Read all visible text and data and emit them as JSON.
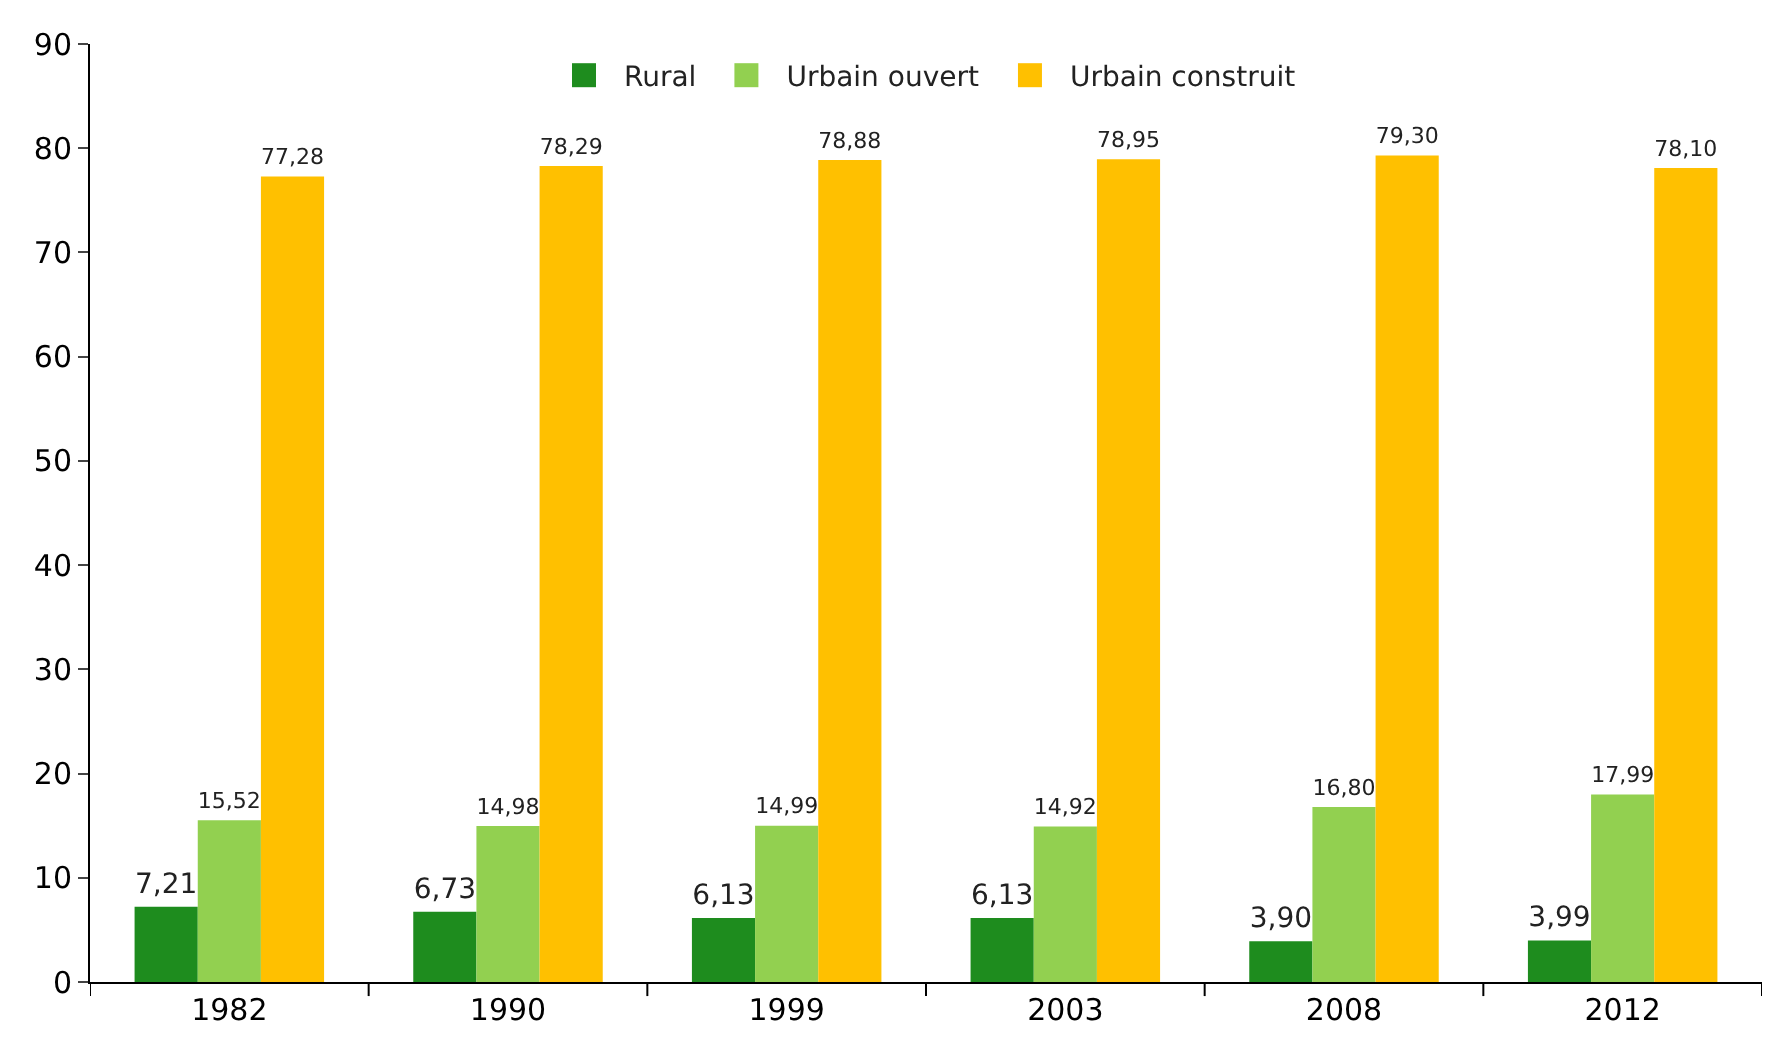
{
  "chart_data": {
    "type": "bar",
    "categories": [
      "1982",
      "1990",
      "1999",
      "2003",
      "2008",
      "2012"
    ],
    "series": [
      {
        "name": "Rural",
        "color": "#1e8c1e",
        "values": [
          7.21,
          6.73,
          6.13,
          6.13,
          3.9,
          3.99
        ],
        "value_labels": [
          "7,21",
          "6,73",
          "6,13",
          "6,13",
          "3,90",
          "3,99"
        ]
      },
      {
        "name": "Urbain ouvert",
        "color": "#92d050",
        "values": [
          15.52,
          14.98,
          14.99,
          14.92,
          16.8,
          17.99
        ],
        "value_labels": [
          "15,52",
          "14,98",
          "14,99",
          "14,92",
          "16,80",
          "17,99"
        ]
      },
      {
        "name": "Urbain construit",
        "color": "#ffc000",
        "values": [
          77.28,
          78.29,
          78.88,
          78.95,
          79.3,
          78.1
        ],
        "value_labels": [
          "77,28",
          "78,29",
          "78,88",
          "78,95",
          "79,30",
          "78,10"
        ]
      }
    ],
    "ylim": [
      0,
      90
    ],
    "yticks": [
      0,
      10,
      20,
      30,
      40,
      50,
      60,
      70,
      80,
      90
    ],
    "grid": false,
    "legend": "top"
  }
}
